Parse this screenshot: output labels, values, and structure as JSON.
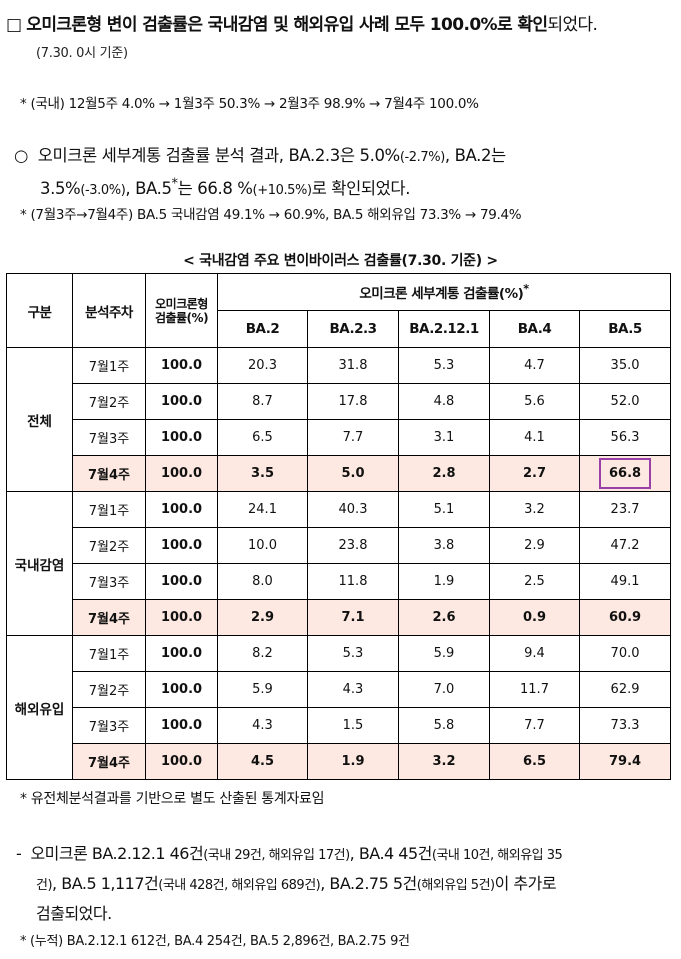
{
  "headline": {
    "marker": "□",
    "bold": "오미크론형 변이 검출률은 국내감염 및 해외유입 사례 모두 100.0%로 확인",
    "tail": "되었다.",
    "basis": "(7.30. 0시 기준)"
  },
  "note1": "* (국내) 12월5주 4.0% → 1월3주 50.3% → 2월3주 98.9% → 7월4주 100.0%",
  "bullet": {
    "marker": "○",
    "line1_a": "오미크론 세부계통 검출률 분석 결과, BA.2.3은 5.0%",
    "line1_a_small": "(-2.7%)",
    "line1_b": ", BA.2는",
    "line2_a": "3.5%",
    "line2_a_small": "(-3.0%)",
    "line2_b": ", BA.5",
    "line2_sup": "*",
    "line2_c": "는 66.8 %",
    "line2_c_small": "(+10.5%)",
    "line2_d": "로 확인되었다."
  },
  "note2": "* (7월3주→7월4주) BA.5 국내감염 49.1% → 60.9%, BA.5 해외유입 73.3% → 79.4%",
  "table": {
    "caption": "< 국내감염 주요 변이바이러스 검출률(7.30. 기준) >",
    "headers": {
      "group": "구분",
      "week": "분석주차",
      "omicron": "오미크론형 검출률(%)",
      "subline": "오미크론 세부계통 검출률(%)",
      "subline_sup": "*",
      "variants": [
        "BA.2",
        "BA.2.3",
        "BA.2.12.1",
        "BA.4",
        "BA.5"
      ]
    },
    "groups": [
      {
        "name": "전체",
        "rows": [
          {
            "week": "7월1주",
            "total": "100.0",
            "vals": [
              "20.3",
              "31.8",
              "5.3",
              "4.7",
              "35.0"
            ]
          },
          {
            "week": "7월2주",
            "total": "100.0",
            "vals": [
              "8.7",
              "17.8",
              "4.8",
              "5.6",
              "52.0"
            ]
          },
          {
            "week": "7월3주",
            "total": "100.0",
            "vals": [
              "6.5",
              "7.7",
              "3.1",
              "4.1",
              "56.3"
            ]
          },
          {
            "week": "7월4주",
            "total": "100.0",
            "vals": [
              "3.5",
              "5.0",
              "2.8",
              "2.7",
              "66.8"
            ]
          }
        ]
      },
      {
        "name": "국내감염",
        "rows": [
          {
            "week": "7월1주",
            "total": "100.0",
            "vals": [
              "24.1",
              "40.3",
              "5.1",
              "3.2",
              "23.7"
            ]
          },
          {
            "week": "7월2주",
            "total": "100.0",
            "vals": [
              "10.0",
              "23.8",
              "3.8",
              "2.9",
              "47.2"
            ]
          },
          {
            "week": "7월3주",
            "total": "100.0",
            "vals": [
              "8.0",
              "11.8",
              "1.9",
              "2.5",
              "49.1"
            ]
          },
          {
            "week": "7월4주",
            "total": "100.0",
            "vals": [
              "2.9",
              "7.1",
              "2.6",
              "0.9",
              "60.9"
            ]
          }
        ]
      },
      {
        "name": "해외유입",
        "rows": [
          {
            "week": "7월1주",
            "total": "100.0",
            "vals": [
              "8.2",
              "5.3",
              "5.9",
              "9.4",
              "70.0"
            ]
          },
          {
            "week": "7월2주",
            "total": "100.0",
            "vals": [
              "5.9",
              "4.3",
              "7.0",
              "11.7",
              "62.9"
            ]
          },
          {
            "week": "7월3주",
            "total": "100.0",
            "vals": [
              "4.3",
              "1.5",
              "5.8",
              "7.7",
              "73.3"
            ]
          },
          {
            "week": "7월4주",
            "total": "100.0",
            "vals": [
              "4.5",
              "1.9",
              "3.2",
              "6.5",
              "79.4"
            ]
          }
        ]
      }
    ],
    "highlight_color": "#fde9e1",
    "box_color": "#9a3fa8"
  },
  "foot1": "* 유전체분석결과를 기반으로 별도 산출된 통계자료임",
  "dash": {
    "marker": "-",
    "l1_a": "오미크론 BA.2.12.1 46건",
    "l1_s1": "(국내 29건, 해외유입 17건)",
    "l1_b": ", BA.4 45건",
    "l1_s2": "(국내 10건, 해외유입 35",
    "l2_s0": "건)",
    "l2_a": ", BA.5 1,117건",
    "l2_s1": "(국내 428건, 해외유입 689건)",
    "l2_b": ", BA.2.75 5건",
    "l2_s2": "(해외유입 5건)",
    "l2_c": "이 추가로",
    "l3": "검출되었다."
  },
  "foot2": "* (누적) BA.2.12.1 612건, BA.4 254건, BA.5 2,896건, BA.2.75 9건"
}
